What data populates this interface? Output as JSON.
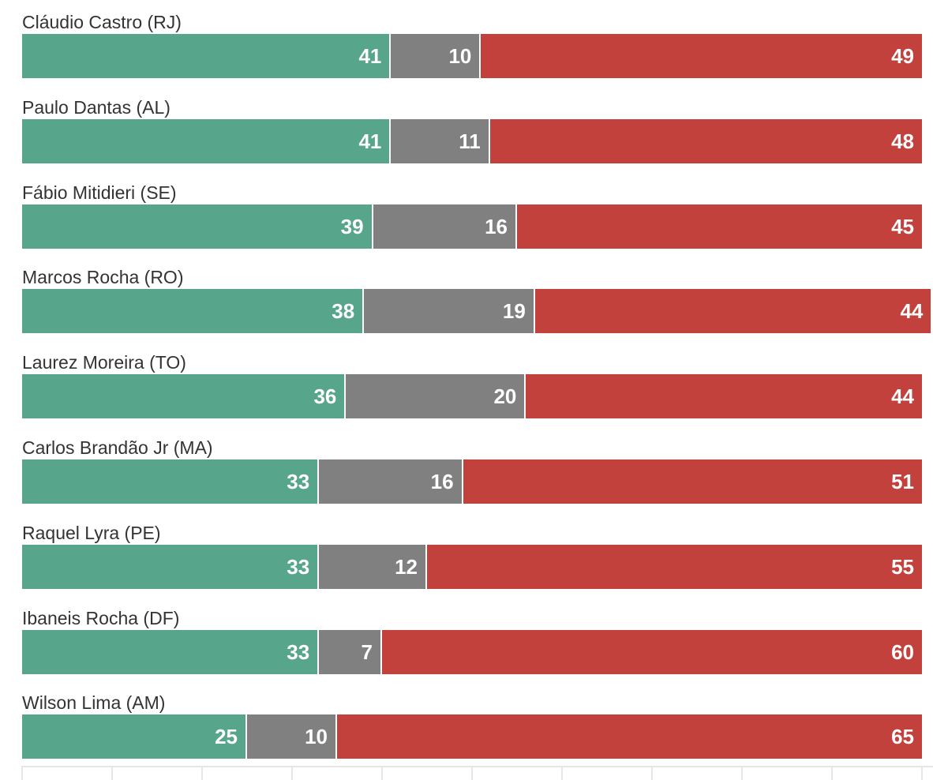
{
  "chart_data": {
    "type": "bar",
    "orientation": "horizontal",
    "stacked": true,
    "categories": [
      "Cláudio Castro (RJ)",
      "Paulo Dantas (AL)",
      "Fábio Mitidieri (SE)",
      "Marcos Rocha (RO)",
      "Laurez Moreira (TO)",
      "Carlos Brandão Jr (MA)",
      "Raquel Lyra (PE)",
      "Ibaneis Rocha (DF)",
      "Wilson Lima (AM)"
    ],
    "series": [
      {
        "name": "green",
        "color": "#57a58a",
        "values": [
          41,
          41,
          39,
          38,
          36,
          33,
          33,
          33,
          25
        ]
      },
      {
        "name": "gray",
        "color": "#808080",
        "values": [
          10,
          11,
          16,
          19,
          20,
          16,
          12,
          7,
          10
        ]
      },
      {
        "name": "red",
        "color": "#c3413c",
        "values": [
          49,
          48,
          45,
          44,
          44,
          51,
          55,
          60,
          65
        ]
      }
    ],
    "xlim": [
      0,
      100
    ],
    "ticks": [
      0,
      10,
      20,
      30,
      40,
      50,
      60,
      70,
      80,
      90,
      100
    ],
    "title": "",
    "xlabel": "",
    "ylabel": "",
    "legend": "none"
  }
}
